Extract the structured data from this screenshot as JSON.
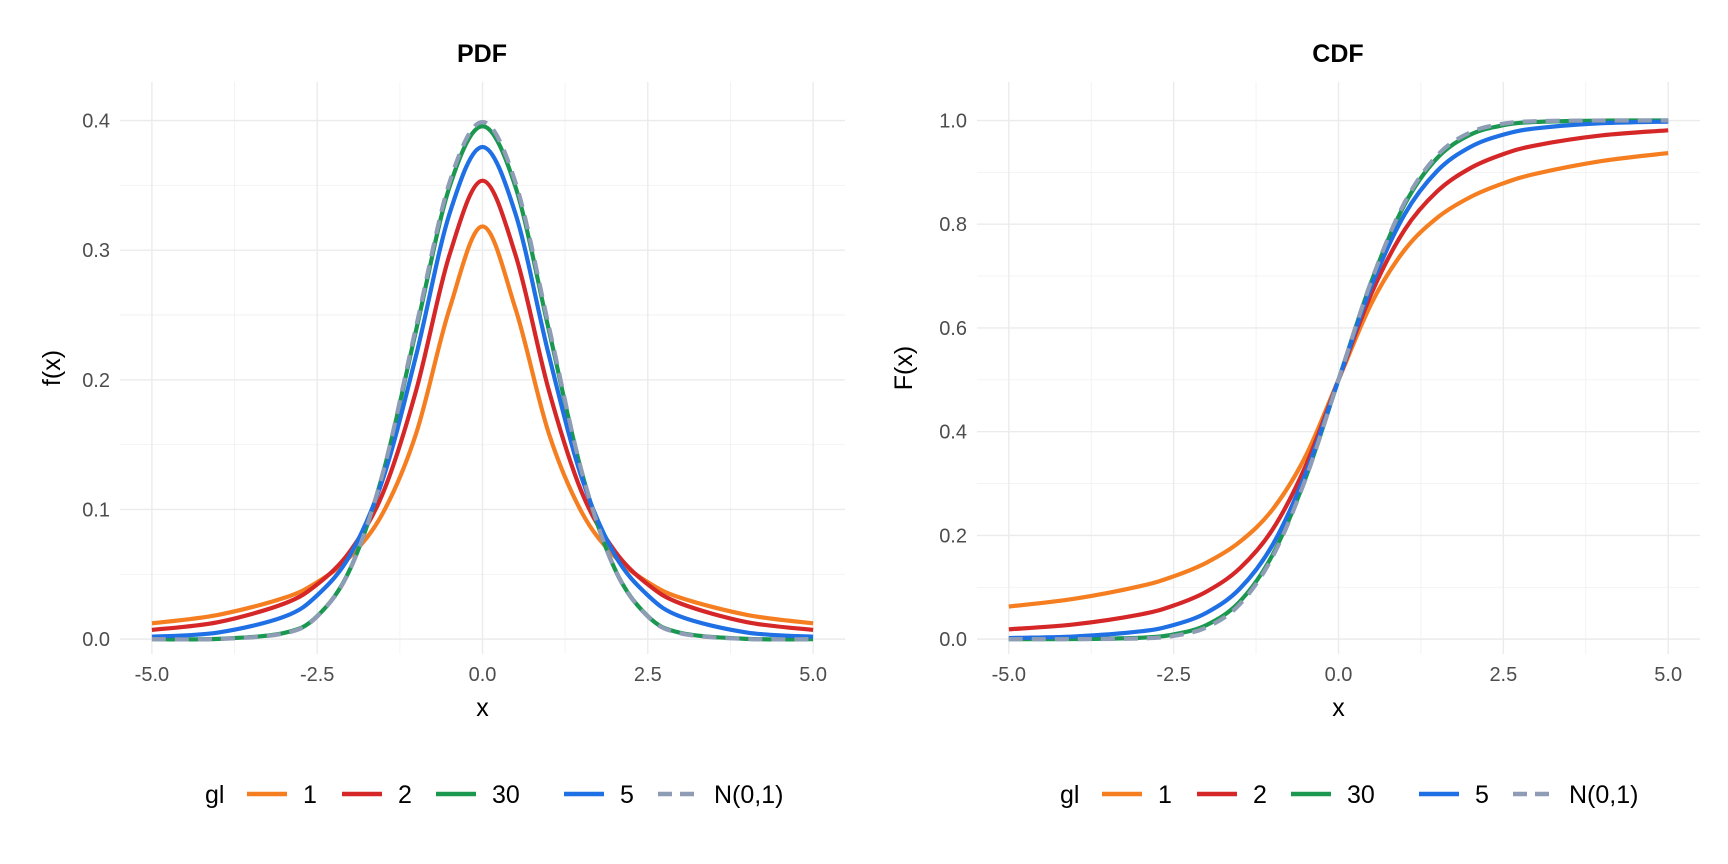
{
  "chart_data": [
    {
      "type": "line",
      "title": "PDF",
      "xlabel": "x",
      "ylabel": "f(x)",
      "xlim": [
        -5,
        5
      ],
      "ylim": [
        0,
        0.42
      ],
      "x_ticks": [
        "-5.0",
        "-2.5",
        "0.0",
        "2.5",
        "5.0"
      ],
      "y_ticks": [
        "0.0",
        "0.1",
        "0.2",
        "0.3",
        "0.4"
      ],
      "x": [
        -5,
        -4,
        -3,
        -2.5,
        -2,
        -1.5,
        -1,
        -0.5,
        0,
        0.5,
        1,
        1.5,
        2,
        2.5,
        3,
        4,
        5
      ],
      "series": [
        {
          "name": "1",
          "color": "#F57E20",
          "dash": false,
          "values": [
            0.0122,
            0.0187,
            0.0318,
            0.0439,
            0.0637,
            0.0979,
            0.1592,
            0.2546,
            0.3183,
            0.2546,
            0.1592,
            0.0979,
            0.0637,
            0.0439,
            0.0318,
            0.0187,
            0.0122
          ]
        },
        {
          "name": "2",
          "color": "#D62728",
          "dash": false,
          "values": [
            0.0071,
            0.0131,
            0.0274,
            0.0422,
            0.068,
            0.1134,
            0.1925,
            0.2962,
            0.3536,
            0.2962,
            0.1925,
            0.1134,
            0.068,
            0.0422,
            0.0274,
            0.0131,
            0.0071
          ]
        },
        {
          "name": "30",
          "color": "#1A9850",
          "dash": false,
          "values": [
            1e-05,
            0.0002,
            0.0048,
            0.0177,
            0.0543,
            0.1288,
            0.2392,
            0.3486,
            0.3956,
            0.3486,
            0.2392,
            0.1288,
            0.0543,
            0.0177,
            0.0048,
            0.0002,
            1e-05
          ]
        },
        {
          "name": "5",
          "color": "#1F6FE5",
          "dash": false,
          "values": [
            0.0018,
            0.0051,
            0.0173,
            0.0338,
            0.0651,
            0.1245,
            0.2197,
            0.3279,
            0.3796,
            0.3279,
            0.2197,
            0.1245,
            0.0651,
            0.0338,
            0.0173,
            0.0051,
            0.0018
          ]
        },
        {
          "name": "N(0,1)",
          "color": "#8E9CB5",
          "dash": true,
          "values": [
            1.5e-06,
            0.0001,
            0.0044,
            0.0175,
            0.054,
            0.1295,
            0.242,
            0.3521,
            0.3989,
            0.3521,
            0.242,
            0.1295,
            0.054,
            0.0175,
            0.0044,
            0.0001,
            1.5e-06
          ]
        }
      ],
      "legend_title": "gl",
      "legend_position": "bottom"
    },
    {
      "type": "line",
      "title": "CDF",
      "xlabel": "x",
      "ylabel": "F(x)",
      "xlim": [
        -5,
        5
      ],
      "ylim": [
        0,
        1.05
      ],
      "x_ticks": [
        "-5.0",
        "-2.5",
        "0.0",
        "2.5",
        "5.0"
      ],
      "y_ticks": [
        "0.0",
        "0.2",
        "0.4",
        "0.6",
        "0.8",
        "1.0"
      ],
      "x": [
        -5,
        -4,
        -3,
        -2.5,
        -2,
        -1.5,
        -1,
        -0.5,
        0,
        0.5,
        1,
        1.5,
        2,
        2.5,
        3,
        4,
        5
      ],
      "series": [
        {
          "name": "1",
          "color": "#F57E20",
          "dash": false,
          "values": [
            0.0628,
            0.078,
            0.1024,
            0.1211,
            0.1476,
            0.1872,
            0.25,
            0.3524,
            0.5,
            0.6476,
            0.75,
            0.8128,
            0.8524,
            0.8789,
            0.8976,
            0.922,
            0.9372
          ]
        },
        {
          "name": "2",
          "color": "#D62728",
          "dash": false,
          "values": [
            0.0189,
            0.0286,
            0.0477,
            0.0648,
            0.0918,
            0.1362,
            0.2113,
            0.3333,
            0.5,
            0.6667,
            0.7887,
            0.8638,
            0.9082,
            0.9352,
            0.9523,
            0.9714,
            0.9811
          ]
        },
        {
          "name": "30",
          "color": "#1A9850",
          "dash": false,
          "values": [
            1e-05,
            0.0002,
            0.0027,
            0.0091,
            0.0273,
            0.072,
            0.1626,
            0.3104,
            0.5,
            0.6896,
            0.8374,
            0.928,
            0.9727,
            0.9909,
            0.9973,
            0.9998,
            0.99999
          ]
        },
        {
          "name": "5",
          "color": "#1F6FE5",
          "dash": false,
          "values": [
            0.0021,
            0.0052,
            0.015,
            0.0272,
            0.051,
            0.0969,
            0.1816,
            0.3191,
            0.5,
            0.6809,
            0.8184,
            0.9031,
            0.949,
            0.9728,
            0.985,
            0.9948,
            0.9979
          ]
        },
        {
          "name": "N(0,1)",
          "color": "#8E9CB5",
          "dash": true,
          "values": [
            3e-07,
            3e-05,
            0.0013,
            0.0062,
            0.0228,
            0.0668,
            0.1587,
            0.3085,
            0.5,
            0.6915,
            0.8413,
            0.9332,
            0.9772,
            0.9938,
            0.9987,
            0.99997,
            0.9999997
          ]
        }
      ],
      "legend_title": "gl",
      "legend_position": "bottom"
    }
  ]
}
